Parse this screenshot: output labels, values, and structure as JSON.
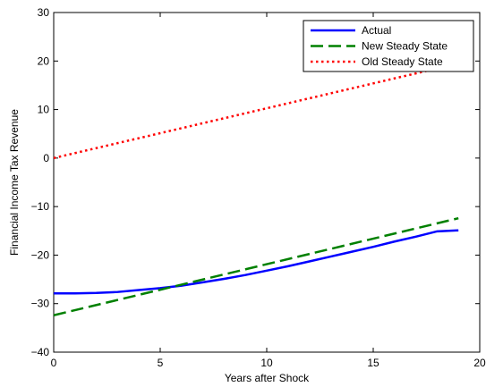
{
  "chart_data": {
    "type": "line",
    "title": "",
    "xlabel": "Years after Shock",
    "ylabel": "Financial Income Tax Revenue",
    "xlim": [
      0,
      20
    ],
    "ylim": [
      -40,
      30
    ],
    "x_ticks": [
      0,
      5,
      10,
      15,
      20
    ],
    "y_ticks": [
      -40,
      -30,
      -20,
      -10,
      0,
      10,
      20,
      30
    ],
    "grid": false,
    "legend_position": "top-right",
    "series": [
      {
        "name": "Actual",
        "color": "#0000ff",
        "style": "solid",
        "x": [
          0,
          1,
          2,
          3,
          4,
          5,
          6,
          7,
          8,
          9,
          10,
          11,
          12,
          13,
          14,
          15,
          16,
          17,
          18,
          19
        ],
        "values": [
          -27.9,
          -27.9,
          -27.8,
          -27.6,
          -27.2,
          -26.8,
          -26.3,
          -25.6,
          -24.9,
          -24.1,
          -23.2,
          -22.3,
          -21.3,
          -20.3,
          -19.3,
          -18.3,
          -17.2,
          -16.2,
          -15.1,
          -14.9
        ]
      },
      {
        "name": "New Steady State",
        "color": "#008000",
        "style": "dashed",
        "x": [
          0,
          19
        ],
        "values": [
          -32.4,
          -12.4
        ]
      },
      {
        "name": "Old Steady State",
        "color": "#ff0000",
        "style": "dotted",
        "x": [
          0,
          19
        ],
        "values": [
          0,
          19.5
        ]
      }
    ]
  }
}
